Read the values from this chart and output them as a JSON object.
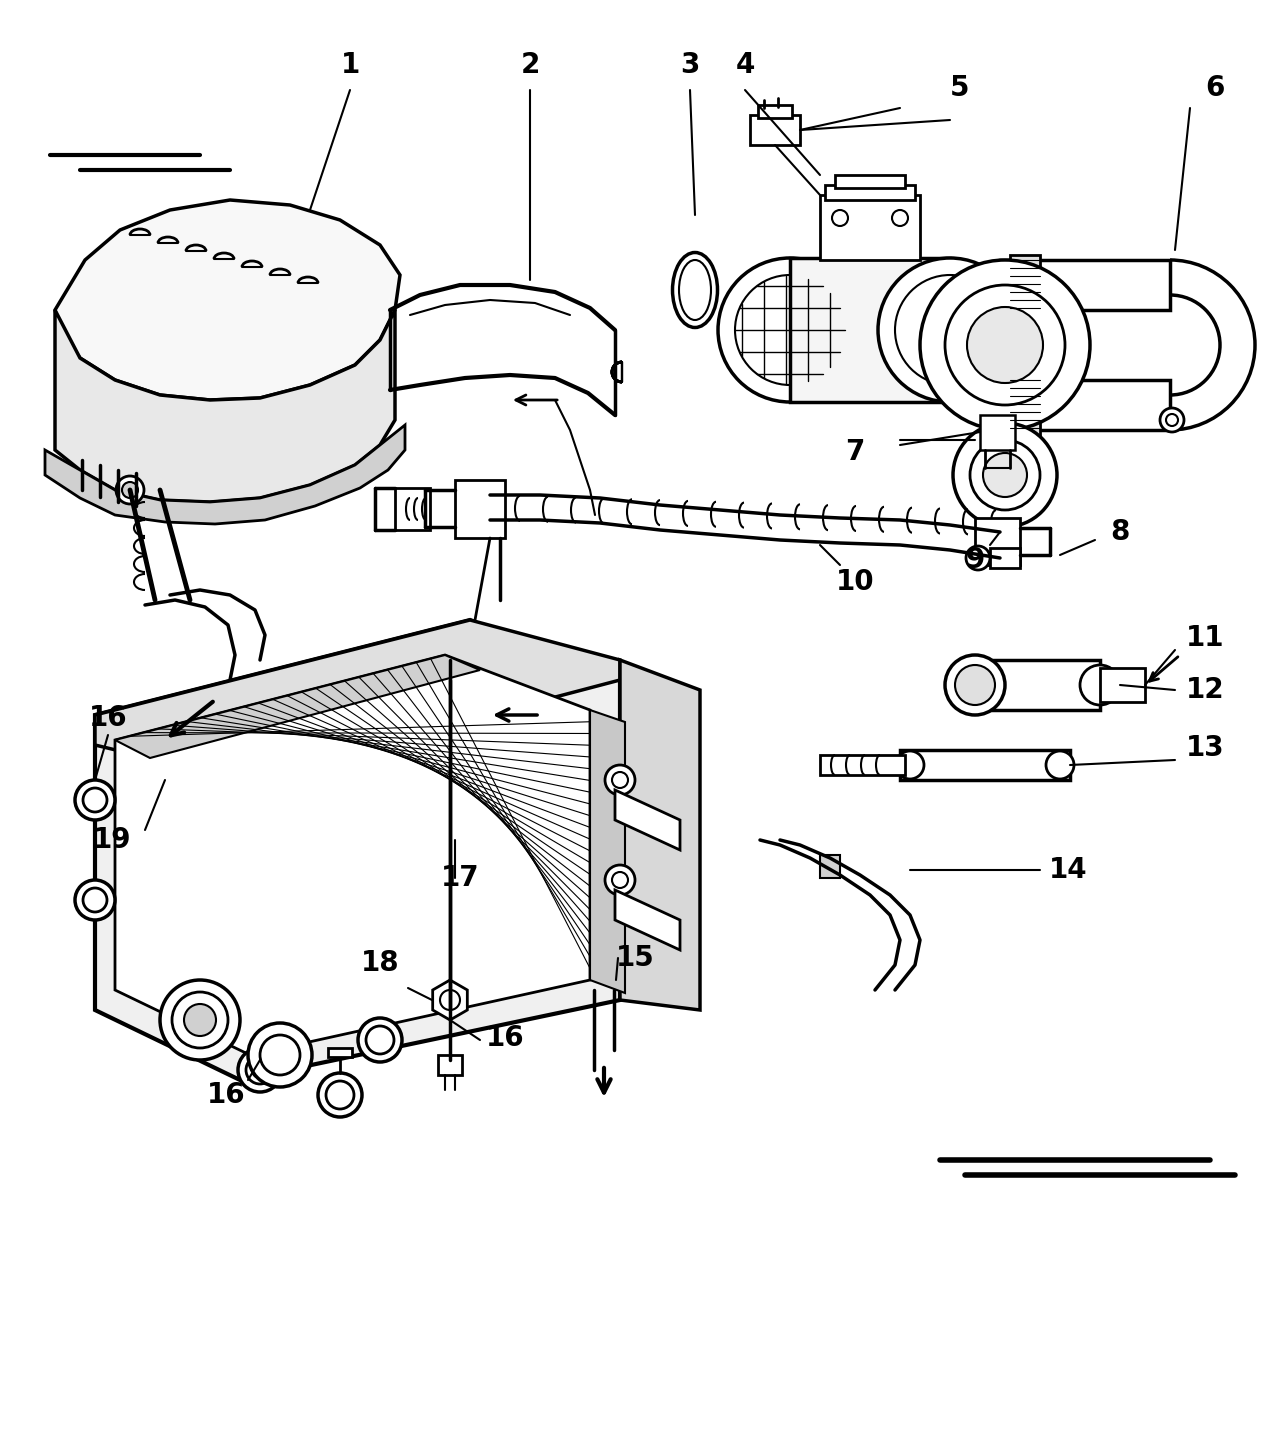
{
  "background_color": "#ffffff",
  "line_color": "#000000",
  "figsize": [
    12.8,
    14.3
  ],
  "dpi": 100,
  "label_fontsize": 20,
  "label_fontweight": "bold",
  "labels": [
    [
      "1",
      350,
      68
    ],
    [
      "2",
      530,
      68
    ],
    [
      "3",
      690,
      68
    ],
    [
      "4",
      740,
      68
    ],
    [
      "5",
      920,
      90
    ],
    [
      "6",
      1210,
      90
    ],
    [
      "7",
      840,
      440
    ],
    [
      "8",
      1110,
      530
    ],
    [
      "9",
      960,
      560
    ],
    [
      "10",
      840,
      580
    ],
    [
      "11",
      1200,
      640
    ],
    [
      "12",
      1200,
      690
    ],
    [
      "13",
      1200,
      745
    ],
    [
      "14",
      1060,
      870
    ],
    [
      "15",
      630,
      960
    ],
    [
      "16",
      108,
      720
    ],
    [
      "16",
      224,
      1095
    ],
    [
      "16",
      500,
      1040
    ],
    [
      "17",
      455,
      880
    ],
    [
      "18",
      375,
      965
    ],
    [
      "19",
      110,
      840
    ]
  ]
}
